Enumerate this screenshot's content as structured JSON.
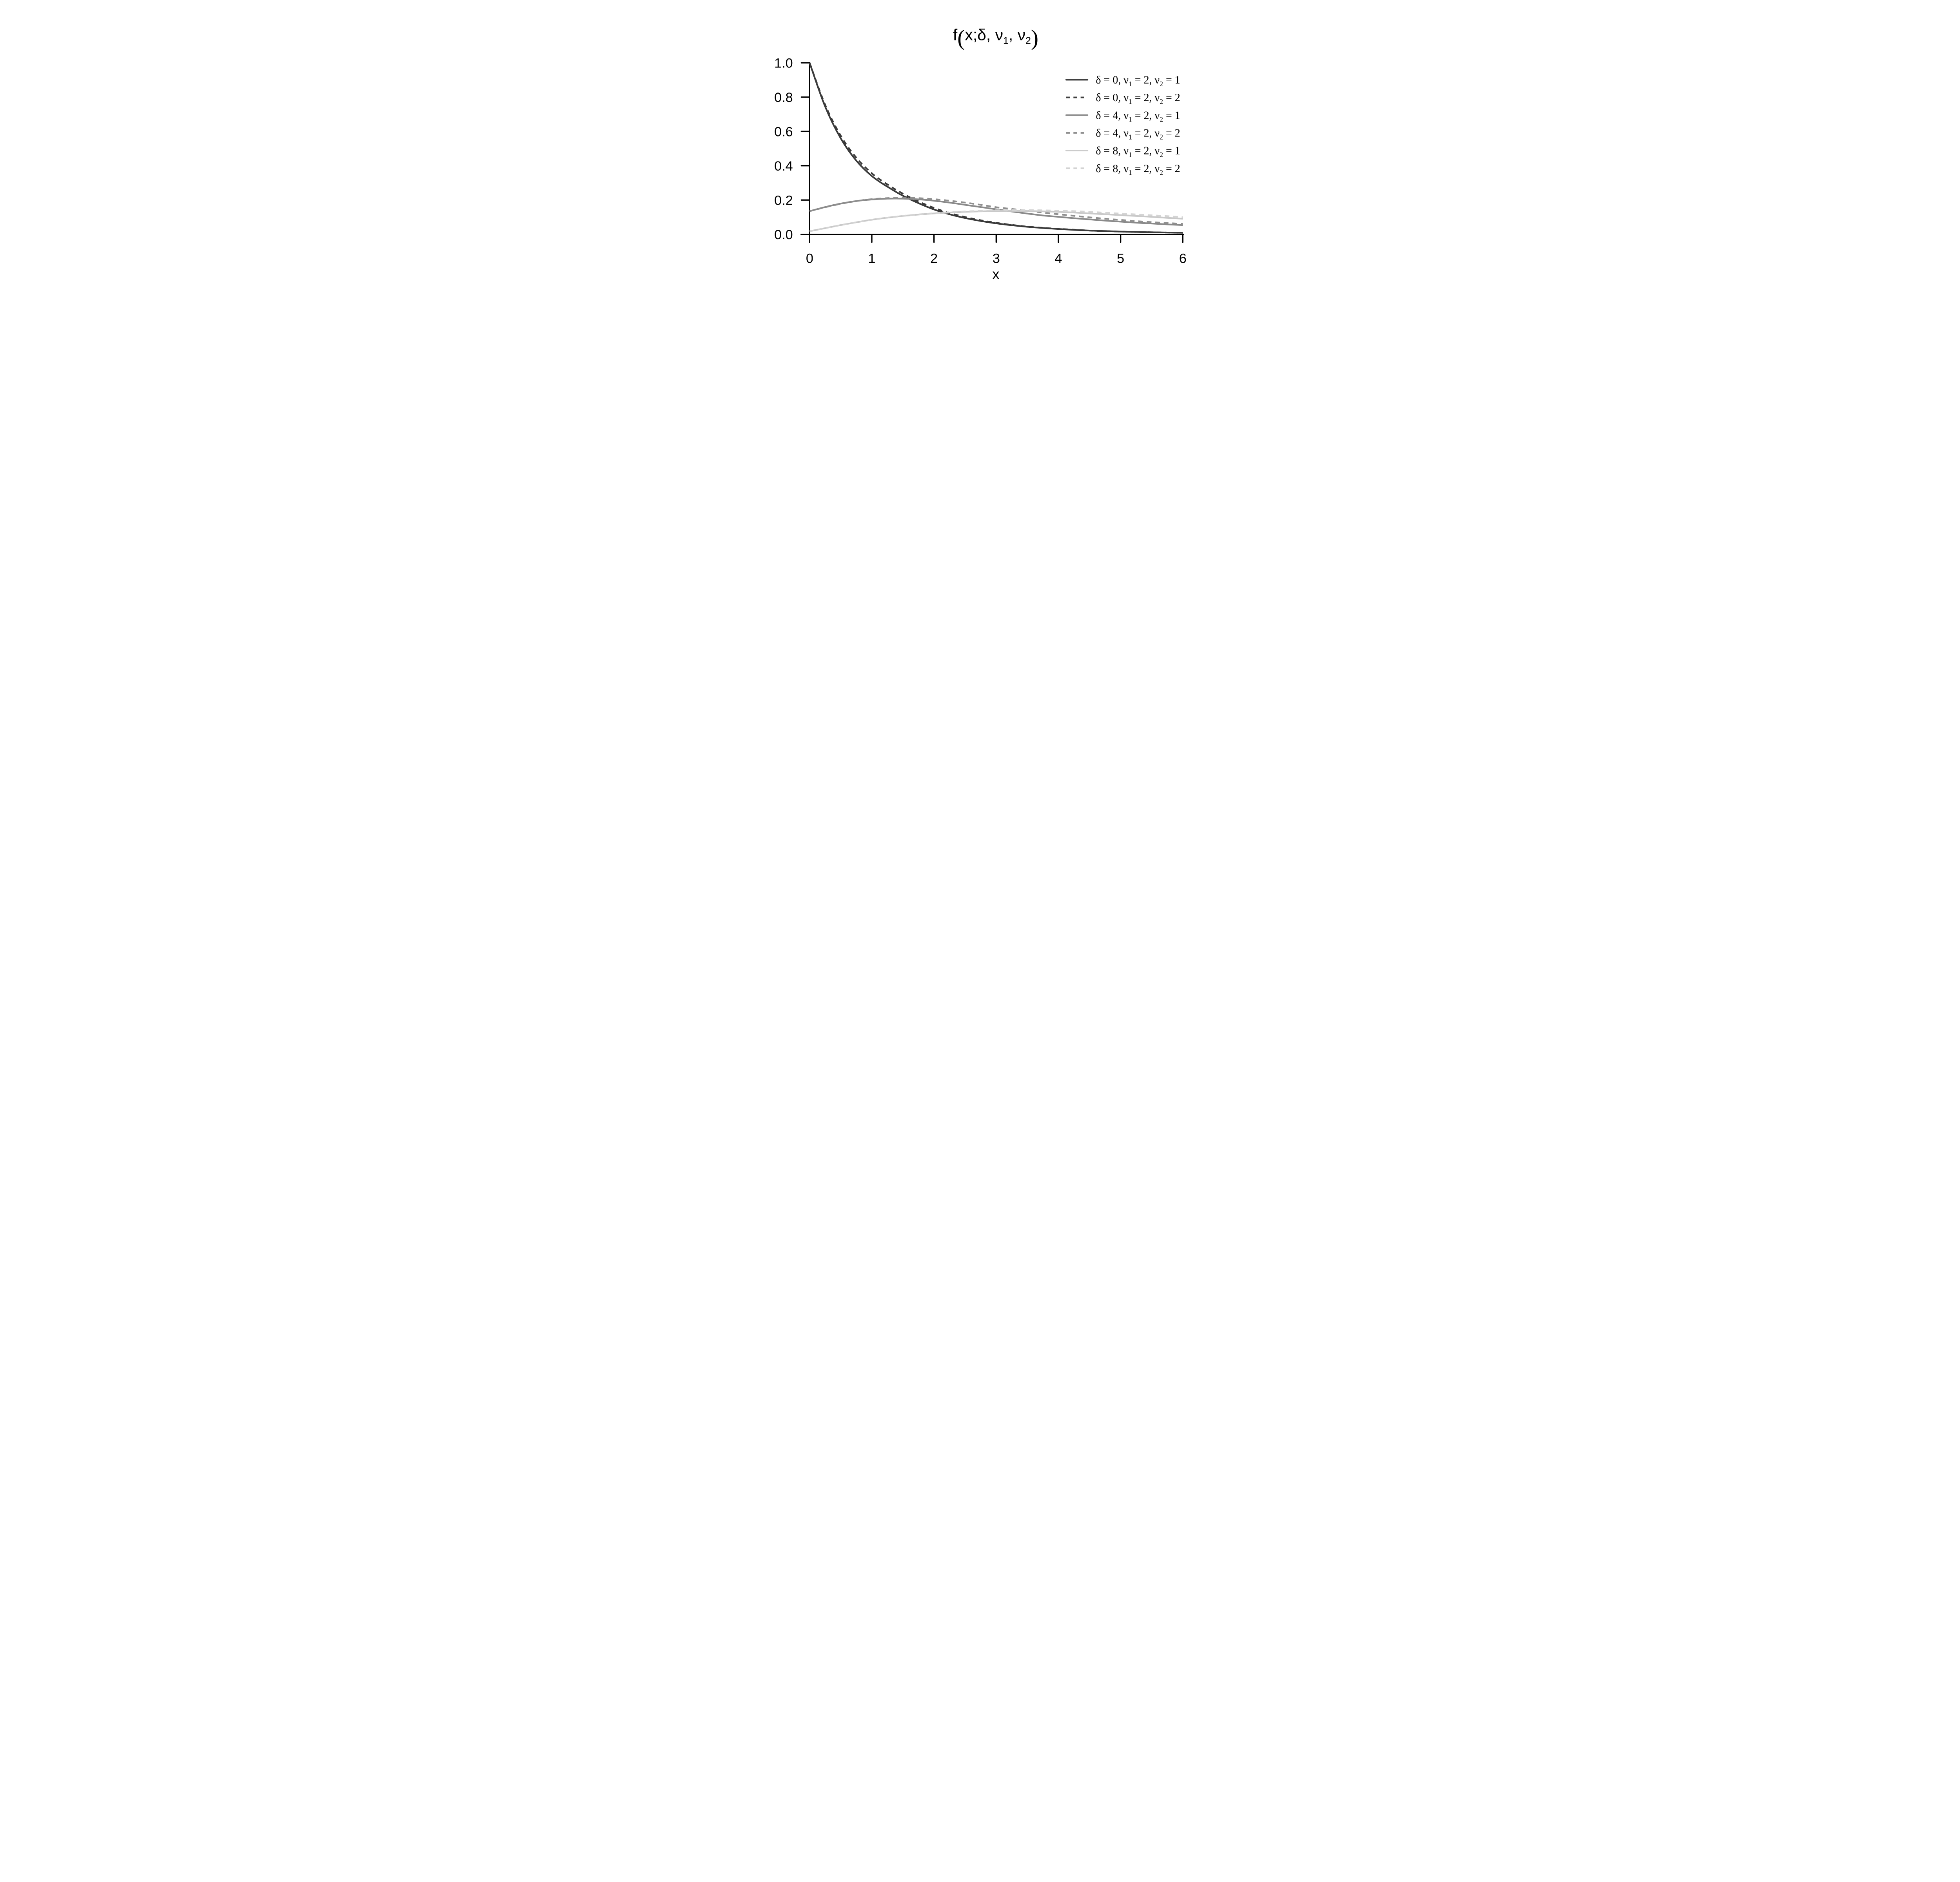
{
  "title": {
    "segments": [
      {
        "t": "f"
      },
      {
        "t": "("
      },
      {
        "t": "x;δ, ν"
      },
      {
        "t": "1"
      },
      {
        "t": ", ν"
      },
      {
        "t": "2"
      },
      {
        "t": ")"
      }
    ],
    "plain": "f(x;δ, ν1, ν2)"
  },
  "axes": {
    "x": {
      "label": "x",
      "ticks": [
        "0",
        "1",
        "2",
        "3",
        "4",
        "5",
        "6"
      ],
      "tick_values": [
        0,
        1,
        2,
        3,
        4,
        5,
        6
      ],
      "range": [
        0,
        6
      ]
    },
    "y": {
      "label": "",
      "ticks": [
        "0.0",
        "0.2",
        "0.4",
        "0.6",
        "0.8",
        "1.0"
      ],
      "tick_values": [
        0,
        0.2,
        0.4,
        0.6,
        0.8,
        1.0
      ],
      "range": [
        0,
        1
      ]
    },
    "color": "#000000"
  },
  "legend": {
    "position": "upper right",
    "entries": [
      {
        "p1": "δ = 0, ν",
        "s1": "1",
        "p2": " = 2, ν",
        "s2": "2",
        "p3": " = 1",
        "style": "solid",
        "color": "#3f3f3f"
      },
      {
        "p1": "δ = 0, ν",
        "s1": "1",
        "p2": " = 2, ν",
        "s2": "2",
        "p3": " = 2",
        "style": "dashed",
        "color": "#3f3f3f"
      },
      {
        "p1": "δ = 4, ν",
        "s1": "1",
        "p2": " = 2, ν",
        "s2": "2",
        "p3": " = 1",
        "style": "solid",
        "color": "#8d8d8d"
      },
      {
        "p1": "δ = 4, ν",
        "s1": "1",
        "p2": " = 2, ν",
        "s2": "2",
        "p3": " = 2",
        "style": "dashed",
        "color": "#909090"
      },
      {
        "p1": "δ = 8, ν",
        "s1": "1",
        "p2": " = 2, ν",
        "s2": "2",
        "p3": " = 1",
        "style": "solid",
        "color": "#cbcbcb"
      },
      {
        "p1": "δ = 8, ν",
        "s1": "1",
        "p2": " = 2, ν",
        "s2": "2",
        "p3": " = 2",
        "style": "dashed",
        "color": "#d3d3d3"
      }
    ]
  },
  "chart_data": {
    "type": "line",
    "title": "f(x;δ, ν1, ν2)",
    "xlabel": "x",
    "ylabel": "",
    "xlim": [
      0,
      6
    ],
    "ylim": [
      0,
      1
    ],
    "grid": false,
    "legend_position": "upper right",
    "x": [
      0,
      0.25,
      0.5,
      0.75,
      1,
      1.25,
      1.5,
      1.75,
      2,
      2.25,
      2.5,
      2.75,
      3,
      3.25,
      3.5,
      3.75,
      4,
      4.25,
      4.5,
      4.75,
      5,
      5.25,
      5.5,
      5.75,
      6
    ],
    "series": [
      {
        "name": "δ = 0, ν1 = 2, ν2 = 1",
        "delta": 0,
        "nu1": 2,
        "nu2": 1,
        "style": "solid",
        "color": "#3a3a3a",
        "values": [
          1.0,
          0.745,
          0.56,
          0.43,
          0.34,
          0.278,
          0.225,
          0.182,
          0.145,
          0.117,
          0.095,
          0.078,
          0.064,
          0.053,
          0.044,
          0.037,
          0.031,
          0.026,
          0.022,
          0.019,
          0.016,
          0.014,
          0.012,
          0.0105,
          0.009
        ]
      },
      {
        "name": "δ = 0, ν1 = 2, ν2 = 2",
        "delta": 0,
        "nu1": 2,
        "nu2": 2,
        "style": "dashed",
        "color": "#3a3a3a",
        "values": [
          1.0,
          0.755,
          0.575,
          0.447,
          0.356,
          0.291,
          0.237,
          0.192,
          0.154,
          0.124,
          0.101,
          0.082,
          0.067,
          0.055,
          0.045,
          0.038,
          0.032,
          0.027,
          0.022,
          0.019,
          0.016,
          0.014,
          0.012,
          0.0105,
          0.009
        ]
      },
      {
        "name": "δ = 4, ν1 = 2, ν2 = 1",
        "delta": 4,
        "nu1": 2,
        "nu2": 1,
        "style": "solid",
        "color": "#8a8a8a",
        "values": [
          0.135,
          0.159,
          0.179,
          0.194,
          0.203,
          0.208,
          0.208,
          0.204,
          0.196,
          0.185,
          0.172,
          0.159,
          0.146,
          0.133,
          0.121,
          0.11,
          0.102,
          0.094,
          0.087,
          0.08,
          0.074,
          0.068,
          0.063,
          0.058,
          0.054
        ]
      },
      {
        "name": "δ = 4, ν1 = 2, ν2 = 2",
        "delta": 4,
        "nu1": 2,
        "nu2": 2,
        "style": "dashed",
        "color": "#8f8f8f",
        "values": [
          0.135,
          0.158,
          0.178,
          0.194,
          0.205,
          0.211,
          0.213,
          0.211,
          0.205,
          0.196,
          0.185,
          0.172,
          0.158,
          0.148,
          0.138,
          0.127,
          0.117,
          0.108,
          0.099,
          0.091,
          0.084,
          0.077,
          0.071,
          0.066,
          0.061
        ]
      },
      {
        "name": "δ = 8, ν1 = 2, ν2 = 1",
        "delta": 8,
        "nu1": 2,
        "nu2": 1,
        "style": "solid",
        "color": "#c9c9c9",
        "values": [
          0.018,
          0.036,
          0.054,
          0.07,
          0.085,
          0.097,
          0.107,
          0.115,
          0.122,
          0.127,
          0.131,
          0.134,
          0.136,
          0.137,
          0.136,
          0.134,
          0.131,
          0.127,
          0.122,
          0.117,
          0.112,
          0.107,
          0.102,
          0.096,
          0.091
        ]
      },
      {
        "name": "δ = 8, ν1 = 2, ν2 = 2",
        "delta": 8,
        "nu1": 2,
        "nu2": 2,
        "style": "dashed",
        "color": "#d4d4d4",
        "values": [
          0.018,
          0.036,
          0.054,
          0.07,
          0.085,
          0.097,
          0.108,
          0.116,
          0.123,
          0.129,
          0.133,
          0.137,
          0.14,
          0.141,
          0.141,
          0.14,
          0.138,
          0.135,
          0.131,
          0.126,
          0.121,
          0.116,
          0.111,
          0.106,
          0.1
        ]
      }
    ]
  }
}
